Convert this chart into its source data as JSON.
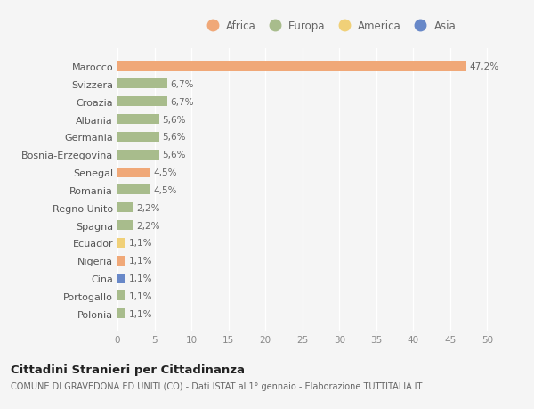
{
  "countries": [
    "Marocco",
    "Svizzera",
    "Croazia",
    "Albania",
    "Germania",
    "Bosnia-Erzegovina",
    "Senegal",
    "Romania",
    "Regno Unito",
    "Spagna",
    "Ecuador",
    "Nigeria",
    "Cina",
    "Portogallo",
    "Polonia"
  ],
  "values": [
    47.2,
    6.7,
    6.7,
    5.6,
    5.6,
    5.6,
    4.5,
    4.5,
    2.2,
    2.2,
    1.1,
    1.1,
    1.1,
    1.1,
    1.1
  ],
  "labels": [
    "47,2%",
    "6,7%",
    "6,7%",
    "5,6%",
    "5,6%",
    "5,6%",
    "4,5%",
    "4,5%",
    "2,2%",
    "2,2%",
    "1,1%",
    "1,1%",
    "1,1%",
    "1,1%",
    "1,1%"
  ],
  "colors": [
    "#F0A878",
    "#A8BC8C",
    "#A8BC8C",
    "#A8BC8C",
    "#A8BC8C",
    "#A8BC8C",
    "#F0A878",
    "#A8BC8C",
    "#A8BC8C",
    "#A8BC8C",
    "#F0D078",
    "#F0A878",
    "#6888C8",
    "#A8BC8C",
    "#A8BC8C"
  ],
  "legend": [
    {
      "label": "Africa",
      "color": "#F0A878"
    },
    {
      "label": "Europa",
      "color": "#A8BC8C"
    },
    {
      "label": "America",
      "color": "#F0D078"
    },
    {
      "label": "Asia",
      "color": "#6888C8"
    }
  ],
  "xlim": [
    0,
    52
  ],
  "xticks": [
    0,
    5,
    10,
    15,
    20,
    25,
    30,
    35,
    40,
    45,
    50
  ],
  "title": "Cittadini Stranieri per Cittadinanza",
  "subtitle": "COMUNE DI GRAVEDONA ED UNITI (CO) - Dati ISTAT al 1° gennaio - Elaborazione TUTTITALIA.IT",
  "bg_color": "#f5f5f5",
  "grid_color": "#ffffff",
  "bar_height": 0.55
}
